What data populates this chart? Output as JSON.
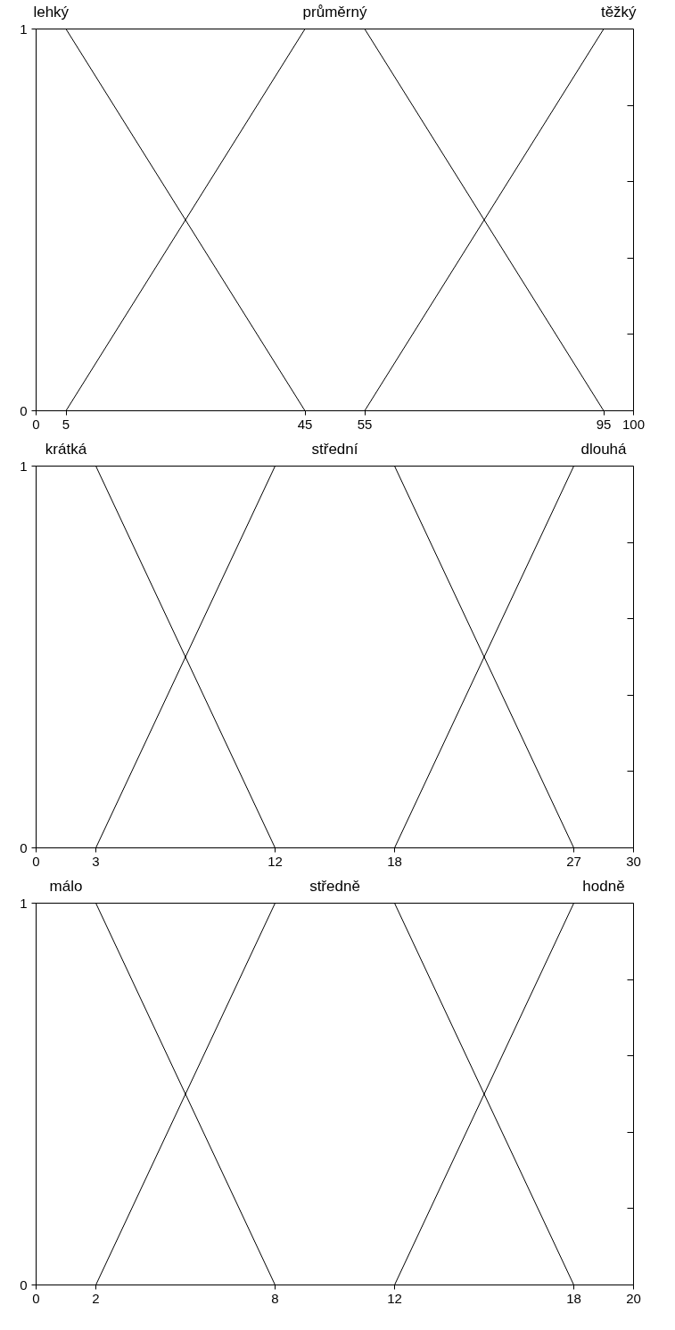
{
  "chart_data": [
    {
      "type": "line",
      "xlim": [
        0,
        100
      ],
      "ylim": [
        0,
        1
      ],
      "xticks": [
        0,
        5,
        45,
        55,
        95,
        100
      ],
      "yticks": [
        0,
        {
          "value": 0.2,
          "label": null
        },
        {
          "value": 0.4,
          "label": null
        },
        {
          "value": 0.6,
          "label": null
        },
        {
          "value": 0.8,
          "label": null
        },
        1
      ],
      "grid": false,
      "legend": false,
      "marker": "none",
      "line_style": "solid",
      "series": [
        {
          "name": "lehký",
          "color": "#000000",
          "x": [
            0,
            5,
            45
          ],
          "values": [
            1,
            1,
            0
          ]
        },
        {
          "name": "průměrný",
          "color": "#000000",
          "x": [
            5,
            45,
            55,
            95
          ],
          "values": [
            0,
            1,
            1,
            0
          ]
        },
        {
          "name": "těžký",
          "color": "#000000",
          "x": [
            55,
            95,
            100
          ],
          "values": [
            0,
            1,
            1
          ]
        }
      ]
    },
    {
      "type": "line",
      "xlim": [
        0,
        30
      ],
      "ylim": [
        0,
        1
      ],
      "xticks": [
        0,
        3,
        12,
        18,
        27,
        30
      ],
      "yticks": [
        0,
        {
          "value": 0.2,
          "label": null
        },
        {
          "value": 0.4,
          "label": null
        },
        {
          "value": 0.6,
          "label": null
        },
        {
          "value": 0.8,
          "label": null
        },
        1
      ],
      "grid": false,
      "legend": false,
      "marker": "none",
      "line_style": "solid",
      "series": [
        {
          "name": "krátká",
          "color": "#000000",
          "x": [
            0,
            3,
            12
          ],
          "values": [
            1,
            1,
            0
          ]
        },
        {
          "name": "střední",
          "color": "#000000",
          "x": [
            3,
            12,
            18,
            27
          ],
          "values": [
            0,
            1,
            1,
            0
          ]
        },
        {
          "name": "dlouhá",
          "color": "#000000",
          "x": [
            18,
            27,
            30
          ],
          "values": [
            0,
            1,
            1
          ]
        }
      ]
    },
    {
      "type": "line",
      "xlim": [
        0,
        20
      ],
      "ylim": [
        0,
        1
      ],
      "xticks": [
        0,
        2,
        8,
        12,
        18,
        20
      ],
      "yticks": [
        0,
        {
          "value": 0.2,
          "label": null
        },
        {
          "value": 0.4,
          "label": null
        },
        {
          "value": 0.6,
          "label": null
        },
        {
          "value": 0.8,
          "label": null
        },
        1
      ],
      "grid": false,
      "legend": false,
      "marker": "none",
      "line_style": "solid",
      "series": [
        {
          "name": "málo",
          "color": "#000000",
          "x": [
            0,
            2,
            8
          ],
          "values": [
            1,
            1,
            0
          ]
        },
        {
          "name": "středně",
          "color": "#000000",
          "x": [
            2,
            8,
            12,
            18
          ],
          "values": [
            0,
            1,
            1,
            0
          ]
        },
        {
          "name": "hodně",
          "color": "#000000",
          "x": [
            12,
            18,
            20
          ],
          "values": [
            0,
            1,
            1
          ]
        }
      ]
    }
  ]
}
